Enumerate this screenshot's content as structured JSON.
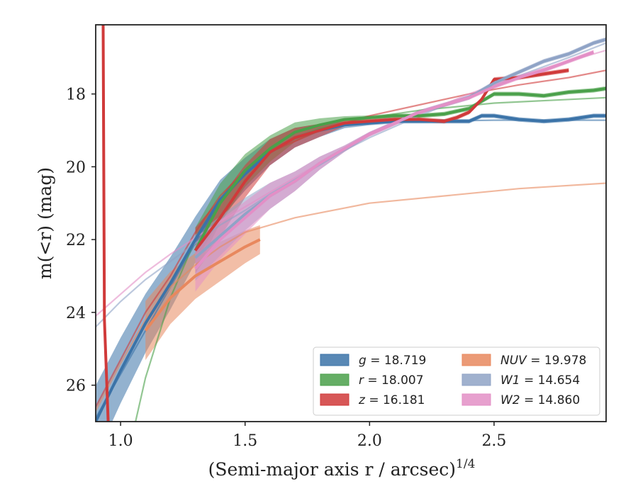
{
  "chart_data": {
    "type": "line",
    "xlabel": "(Semi-major axis r / arcsec)",
    "xlabel_sup": "1/4",
    "ylabel": "m(<r) (mag)",
    "xlim": [
      0.9,
      2.95
    ],
    "ylim": [
      27.0,
      16.1
    ],
    "y_inverted": true,
    "xticks": [
      1.0,
      1.5,
      2.0,
      2.5
    ],
    "xtick_labels": [
      "1.0",
      "1.5",
      "2.0",
      "2.5"
    ],
    "yticks": [
      18,
      20,
      22,
      24,
      26
    ],
    "ytick_labels": [
      "18",
      "20",
      "22",
      "24",
      "26"
    ],
    "grid": false,
    "legend_position": "lower-right",
    "series": [
      {
        "name": "g = 18.719",
        "label_var": "g",
        "label_val": "= 18.719",
        "color": "#3b73a8",
        "curve_of_growth": [
          [
            0.9,
            27.0
          ],
          [
            1.0,
            25.6
          ],
          [
            1.1,
            24.3
          ],
          [
            1.2,
            23.2
          ],
          [
            1.3,
            22.0
          ],
          [
            1.4,
            20.9
          ],
          [
            1.5,
            20.2
          ],
          [
            1.6,
            19.6
          ],
          [
            1.7,
            19.2
          ],
          [
            1.8,
            19.0
          ],
          [
            1.9,
            18.85
          ],
          [
            2.0,
            18.8
          ],
          [
            2.1,
            18.75
          ],
          [
            2.2,
            18.75
          ],
          [
            2.3,
            18.75
          ],
          [
            2.4,
            18.75
          ],
          [
            2.45,
            18.6
          ],
          [
            2.5,
            18.6
          ],
          [
            2.6,
            18.7
          ],
          [
            2.7,
            18.75
          ],
          [
            2.8,
            18.7
          ],
          [
            2.9,
            18.6
          ],
          [
            2.95,
            18.6
          ]
        ],
        "model": [
          [
            0.9,
            26.9
          ],
          [
            1.0,
            25.7
          ],
          [
            1.1,
            24.5
          ],
          [
            1.2,
            23.3
          ],
          [
            1.3,
            22.1
          ],
          [
            1.4,
            21.0
          ],
          [
            1.5,
            20.2
          ],
          [
            1.6,
            19.6
          ],
          [
            1.7,
            19.2
          ],
          [
            1.8,
            19.0
          ],
          [
            1.9,
            18.85
          ],
          [
            2.0,
            18.8
          ],
          [
            2.2,
            18.75
          ],
          [
            2.5,
            18.72
          ],
          [
            2.95,
            18.72
          ]
        ]
      },
      {
        "name": "r = 18.007",
        "label_var": "r",
        "label_val": "= 18.007",
        "color": "#4aa04a",
        "curve_of_growth": [
          [
            1.3,
            22.3
          ],
          [
            1.4,
            21.0
          ],
          [
            1.5,
            20.1
          ],
          [
            1.6,
            19.5
          ],
          [
            1.7,
            19.05
          ],
          [
            1.8,
            18.85
          ],
          [
            1.9,
            18.7
          ],
          [
            2.0,
            18.65
          ],
          [
            2.1,
            18.6
          ],
          [
            2.2,
            18.6
          ],
          [
            2.3,
            18.55
          ],
          [
            2.4,
            18.4
          ],
          [
            2.5,
            18.0
          ],
          [
            2.6,
            18.0
          ],
          [
            2.7,
            18.05
          ],
          [
            2.8,
            17.95
          ],
          [
            2.9,
            17.9
          ],
          [
            2.95,
            17.85
          ]
        ],
        "model": [
          [
            1.06,
            27.0
          ],
          [
            1.1,
            25.8
          ],
          [
            1.2,
            23.6
          ],
          [
            1.3,
            22.0
          ],
          [
            1.4,
            20.9
          ],
          [
            1.5,
            20.1
          ],
          [
            1.6,
            19.55
          ],
          [
            1.7,
            19.2
          ],
          [
            1.8,
            18.95
          ],
          [
            1.9,
            18.8
          ],
          [
            2.0,
            18.65
          ],
          [
            2.2,
            18.45
          ],
          [
            2.5,
            18.25
          ],
          [
            2.95,
            18.1
          ]
        ]
      },
      {
        "name": "z = 16.181",
        "label_var": "z",
        "label_val": "= 16.181",
        "color": "#d03a3a",
        "curve_of_growth": [
          [
            1.3,
            22.3
          ],
          [
            1.4,
            21.4
          ],
          [
            1.5,
            20.4
          ],
          [
            1.6,
            19.6
          ],
          [
            1.7,
            19.2
          ],
          [
            1.8,
            19.0
          ],
          [
            1.9,
            18.8
          ],
          [
            2.0,
            18.75
          ],
          [
            2.1,
            18.7
          ],
          [
            2.2,
            18.7
          ],
          [
            2.3,
            18.75
          ],
          [
            2.35,
            18.65
          ],
          [
            2.4,
            18.5
          ],
          [
            2.45,
            18.15
          ],
          [
            2.5,
            17.6
          ],
          [
            2.6,
            17.55
          ],
          [
            2.7,
            17.45
          ],
          [
            2.8,
            17.35
          ]
        ],
        "model": [
          [
            0.9,
            26.6
          ],
          [
            1.0,
            25.3
          ],
          [
            1.1,
            24.0
          ],
          [
            1.2,
            23.0
          ],
          [
            1.3,
            21.8
          ],
          [
            1.4,
            20.8
          ],
          [
            1.5,
            20.1
          ],
          [
            1.6,
            19.6
          ],
          [
            1.7,
            19.3
          ],
          [
            1.8,
            19.0
          ],
          [
            1.9,
            18.8
          ],
          [
            2.0,
            18.6
          ],
          [
            2.2,
            18.3
          ],
          [
            2.4,
            18.0
          ],
          [
            2.6,
            17.75
          ],
          [
            2.8,
            17.55
          ],
          [
            2.95,
            17.35
          ]
        ]
      },
      {
        "name": "NUV = 19.978",
        "label_var": "NUV",
        "label_val": "= 19.978",
        "color": "#e8885e",
        "curve_of_growth": [
          [
            1.1,
            24.5
          ],
          [
            1.2,
            23.6
          ],
          [
            1.3,
            23.0
          ],
          [
            1.4,
            22.6
          ],
          [
            1.5,
            22.2
          ],
          [
            1.56,
            22.0
          ]
        ],
        "model": [
          [
            0.9,
            26.7
          ],
          [
            1.0,
            25.4
          ],
          [
            1.1,
            24.2
          ],
          [
            1.2,
            23.3
          ],
          [
            1.3,
            22.7
          ],
          [
            1.4,
            22.2
          ],
          [
            1.5,
            21.8
          ],
          [
            1.7,
            21.4
          ],
          [
            2.0,
            21.0
          ],
          [
            2.3,
            20.8
          ],
          [
            2.6,
            20.6
          ],
          [
            2.95,
            20.45
          ]
        ]
      },
      {
        "name": "W1 = 14.654",
        "label_var": "W1",
        "label_val": "= 14.654",
        "color": "#8fa3c6",
        "curve_of_growth": [
          [
            1.3,
            22.5
          ],
          [
            1.4,
            21.9
          ],
          [
            1.5,
            21.3
          ],
          [
            1.6,
            20.8
          ],
          [
            1.7,
            20.4
          ],
          [
            1.8,
            19.9
          ],
          [
            1.9,
            19.5
          ],
          [
            2.0,
            19.1
          ],
          [
            2.1,
            18.8
          ],
          [
            2.2,
            18.5
          ],
          [
            2.3,
            18.3
          ],
          [
            2.4,
            18.1
          ],
          [
            2.5,
            17.7
          ],
          [
            2.6,
            17.4
          ],
          [
            2.7,
            17.1
          ],
          [
            2.8,
            16.9
          ],
          [
            2.9,
            16.6
          ],
          [
            2.95,
            16.5
          ]
        ],
        "model": [
          [
            0.9,
            24.4
          ],
          [
            1.0,
            23.7
          ],
          [
            1.1,
            23.1
          ],
          [
            1.2,
            22.6
          ],
          [
            1.3,
            22.1
          ],
          [
            1.4,
            21.6
          ],
          [
            1.5,
            21.2
          ],
          [
            1.6,
            20.75
          ],
          [
            1.7,
            20.35
          ],
          [
            1.8,
            19.95
          ],
          [
            1.9,
            19.55
          ],
          [
            2.0,
            19.2
          ],
          [
            2.2,
            18.6
          ],
          [
            2.4,
            18.05
          ],
          [
            2.6,
            17.5
          ],
          [
            2.8,
            17.0
          ],
          [
            2.95,
            16.6
          ]
        ]
      },
      {
        "name": "W2 = 14.860",
        "label_var": "W2",
        "label_val": "= 14.860",
        "color": "#e38fc6",
        "curve_of_growth": [
          [
            1.3,
            22.8
          ],
          [
            1.4,
            22.0
          ],
          [
            1.5,
            21.4
          ],
          [
            1.6,
            20.8
          ],
          [
            1.7,
            20.4
          ],
          [
            1.8,
            19.9
          ],
          [
            1.9,
            19.5
          ],
          [
            2.0,
            19.1
          ],
          [
            2.1,
            18.8
          ],
          [
            2.2,
            18.5
          ],
          [
            2.3,
            18.3
          ],
          [
            2.4,
            18.1
          ],
          [
            2.5,
            17.8
          ],
          [
            2.6,
            17.55
          ],
          [
            2.7,
            17.35
          ],
          [
            2.8,
            17.1
          ],
          [
            2.9,
            16.85
          ]
        ],
        "model": [
          [
            0.9,
            24.1
          ],
          [
            1.0,
            23.5
          ],
          [
            1.1,
            22.9
          ],
          [
            1.2,
            22.4
          ],
          [
            1.3,
            21.95
          ],
          [
            1.4,
            21.5
          ],
          [
            1.5,
            21.1
          ],
          [
            1.6,
            20.7
          ],
          [
            1.7,
            20.3
          ],
          [
            1.8,
            19.9
          ],
          [
            1.9,
            19.5
          ],
          [
            2.0,
            19.15
          ],
          [
            2.2,
            18.55
          ],
          [
            2.4,
            18.0
          ],
          [
            2.6,
            17.5
          ],
          [
            2.8,
            17.1
          ],
          [
            2.95,
            16.8
          ]
        ]
      }
    ]
  }
}
